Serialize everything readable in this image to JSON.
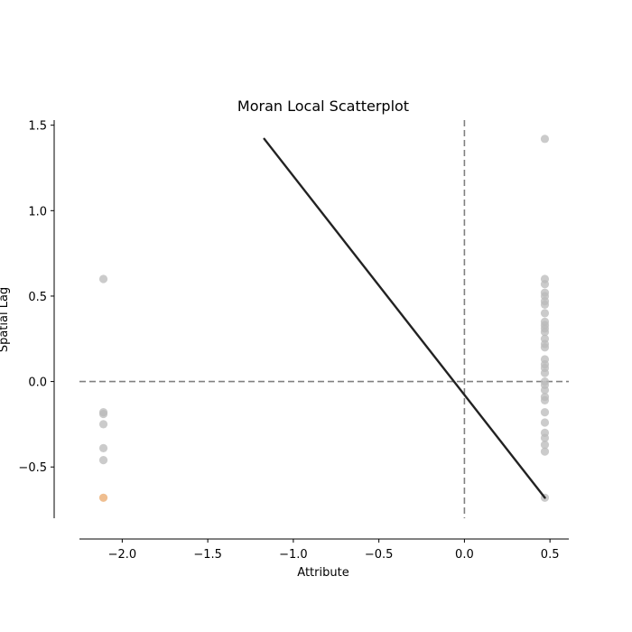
{
  "chart_data": {
    "type": "scatter",
    "title": "Moran Local Scatterplot",
    "xlabel": "Attribute",
    "ylabel": "Spatial Lag",
    "xlim": [
      -2.25,
      0.61
    ],
    "ylim": [
      -0.8,
      1.53
    ],
    "x_ticks": [
      -2.0,
      -1.5,
      -1.0,
      -0.5,
      0.0,
      0.5
    ],
    "x_tick_labels": [
      "−2.0",
      "−1.5",
      "−1.0",
      "−0.5",
      "0.0",
      "0.5"
    ],
    "y_ticks": [
      -0.5,
      0.0,
      0.5,
      1.0,
      1.5
    ],
    "y_tick_labels": [
      "−0.5",
      "0.0",
      "0.5",
      "1.0",
      "1.5"
    ],
    "grid": false,
    "reference_lines": {
      "x": 0.0,
      "y": 0.0,
      "style": "dashed",
      "color": "#808080"
    },
    "colors": {
      "point_default": "#bababa",
      "point_highlight": "#e9a86b",
      "regression_line": "#222222",
      "reference_line": "#808080",
      "axis": "#000000"
    },
    "series": [
      {
        "color": "#bababa",
        "points": [
          [
            -2.11,
            0.6
          ],
          [
            -2.11,
            -0.18
          ],
          [
            -2.11,
            -0.19
          ],
          [
            -2.11,
            -0.25
          ],
          [
            -2.11,
            -0.39
          ],
          [
            -2.11,
            -0.46
          ],
          [
            0.47,
            1.42
          ],
          [
            0.47,
            0.6
          ],
          [
            0.47,
            0.57
          ],
          [
            0.47,
            0.52
          ],
          [
            0.47,
            0.5
          ],
          [
            0.47,
            0.47
          ],
          [
            0.47,
            0.45
          ],
          [
            0.47,
            0.4
          ],
          [
            0.47,
            0.35
          ],
          [
            0.47,
            0.33
          ],
          [
            0.47,
            0.31
          ],
          [
            0.47,
            0.29
          ],
          [
            0.47,
            0.25
          ],
          [
            0.47,
            0.22
          ],
          [
            0.47,
            0.2
          ],
          [
            0.47,
            0.13
          ],
          [
            0.47,
            0.1
          ],
          [
            0.47,
            0.08
          ],
          [
            0.47,
            0.05
          ],
          [
            0.47,
            0.0
          ],
          [
            0.47,
            -0.02
          ],
          [
            0.47,
            -0.05
          ],
          [
            0.47,
            -0.09
          ],
          [
            0.47,
            -0.11
          ],
          [
            0.47,
            -0.18
          ],
          [
            0.47,
            -0.24
          ],
          [
            0.47,
            -0.3
          ],
          [
            0.47,
            -0.33
          ],
          [
            0.47,
            -0.37
          ],
          [
            0.47,
            -0.41
          ],
          [
            0.47,
            -0.68
          ]
        ]
      },
      {
        "color": "#e9a86b",
        "points": [
          [
            -2.11,
            -0.68
          ]
        ]
      }
    ],
    "regression_line": {
      "x": [
        -1.17,
        0.47
      ],
      "y": [
        1.42,
        -0.68
      ]
    }
  }
}
